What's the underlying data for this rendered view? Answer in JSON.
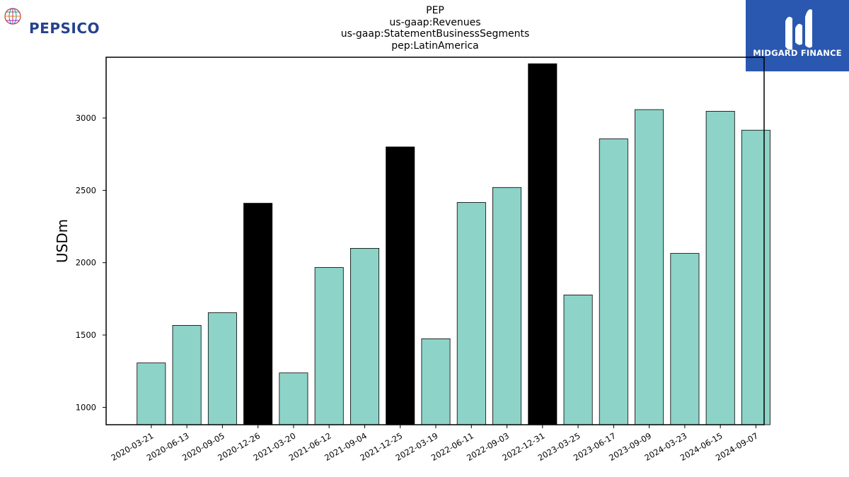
{
  "title_lines": [
    "PEP",
    "us-gaap:Revenues",
    "us-gaap:StatementBusinessSegments",
    "pep:LatinAmerica"
  ],
  "logos": {
    "left": "PEPSICO",
    "right": "MIDGARD FINANCE"
  },
  "colors": {
    "bar_default": "#8dd3c7",
    "bar_highlight": "#000000",
    "brand_pepsico": "#26418f",
    "brand_midgard": "#2a58b0"
  },
  "chart_data": {
    "type": "bar",
    "title": "PEP us-gaap:Revenues us-gaap:StatementBusinessSegments pep:LatinAmerica",
    "xlabel": "",
    "ylabel": "USDm",
    "ylim": [
      880,
      3420
    ],
    "yticks": [
      1000,
      1500,
      2000,
      2500,
      3000
    ],
    "grid": false,
    "categories": [
      "2020-03-21",
      "2020-06-13",
      "2020-09-05",
      "2020-12-26",
      "2021-03-20",
      "2021-06-12",
      "2021-09-04",
      "2021-12-25",
      "2022-03-19",
      "2022-06-11",
      "2022-09-03",
      "2022-12-31",
      "2023-03-25",
      "2023-06-17",
      "2023-09-09",
      "2024-03-23",
      "2024-06-15",
      "2024-09-07"
    ],
    "values": [
      1307,
      1567,
      1654,
      2411,
      1238,
      1967,
      2099,
      2800,
      1474,
      2416,
      2520,
      3375,
      1777,
      2856,
      3058,
      2064,
      3047,
      2916
    ],
    "highlighted": [
      false,
      false,
      false,
      true,
      false,
      false,
      false,
      true,
      false,
      false,
      false,
      true,
      false,
      false,
      false,
      false,
      false,
      false
    ]
  }
}
